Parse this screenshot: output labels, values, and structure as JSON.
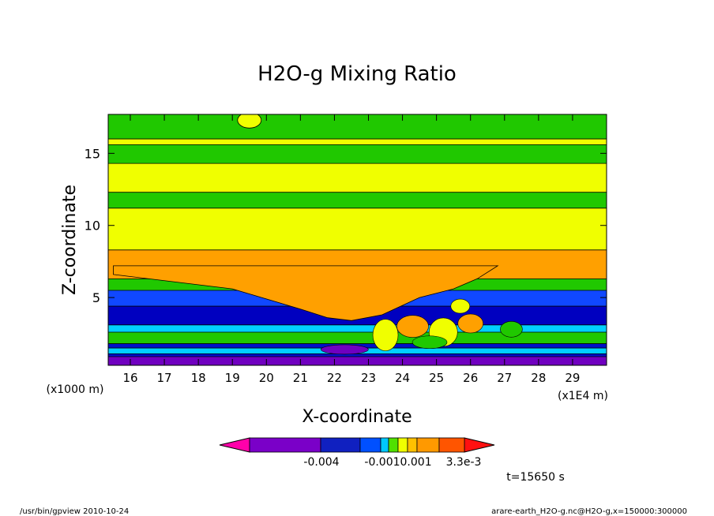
{
  "chart_data": {
    "type": "heatmap",
    "title": "H2O-g Mixing Ratio",
    "xlabel": "X-coordinate",
    "ylabel": "Z-coordinate",
    "x_ticks": [
      "16",
      "17",
      "18",
      "19",
      "20",
      "21",
      "22",
      "23",
      "24",
      "25",
      "26",
      "27",
      "28",
      "29"
    ],
    "x_unit": "(x1E4 m)",
    "y_ticks": [
      "5",
      "10",
      "15"
    ],
    "y_unit": "(x1000 m)",
    "xlim": [
      15.35,
      30.0
    ],
    "ylim": [
      0.3,
      17.7
    ],
    "legend": {
      "labels": [
        "-0.004",
        "-0.0010.001",
        "3.3e-3"
      ],
      "colors": [
        "#ff00aa",
        "#7a00c8",
        "#1020c0",
        "#0050ff",
        "#00c8ff",
        "#50e000",
        "#f0ff00",
        "#ffc000",
        "#ff9900",
        "#ff5500",
        "#ff1010"
      ]
    },
    "time_label": "t=15650 s",
    "bands": [
      {
        "color": "#20c800",
        "top": 17.7
      },
      {
        "color": "#f0ff00",
        "top": 16.0
      },
      {
        "color": "#20c800",
        "top": 15.6
      },
      {
        "color": "#f0ff00",
        "top": 14.3
      },
      {
        "color": "#20c800",
        "top": 12.3
      },
      {
        "color": "#f0ff00",
        "top": 11.2
      },
      {
        "color": "#ffa000",
        "top": 8.3
      },
      {
        "color": "#20c800",
        "top": 6.3
      },
      {
        "color": "#1048ff",
        "top": 5.5
      },
      {
        "color": "#0000c0",
        "top": 4.4
      },
      {
        "color": "#00d0ff",
        "top": 3.1
      },
      {
        "color": "#20c800",
        "top": 2.6
      },
      {
        "color": "#0010c8",
        "top": 1.8
      },
      {
        "color": "#00d0ff",
        "top": 1.5
      },
      {
        "color": "#0010c8",
        "top": 1.1
      },
      {
        "color": "#7000c0",
        "top": 0.9
      }
    ]
  },
  "footer": {
    "left": "/usr/bin/gpview  2010-10-24",
    "right": "arare-earth_H2O-g.nc@H2O-g,x=150000:300000"
  }
}
